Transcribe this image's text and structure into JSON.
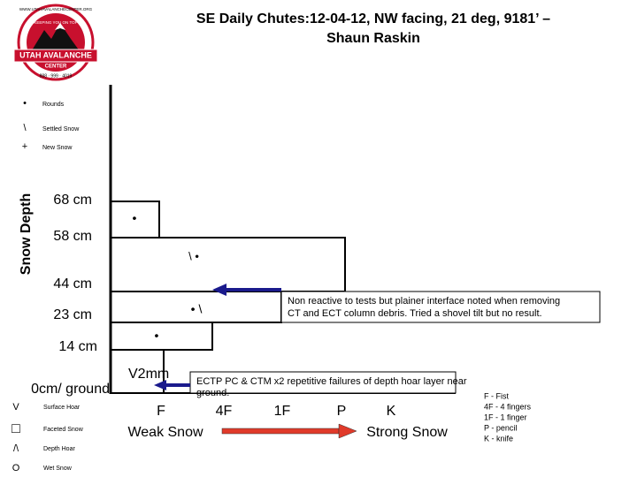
{
  "header": {
    "title_lines": [
      "SE Daily Chutes:12-04-12, NW facing, 21 deg, 9181’ –",
      "Shaun Raskin"
    ]
  },
  "logo": {
    "arc_top": "WWW.UTAHAVALANCHECENTER.ORG",
    "motto": "KEEPING YOU ON TOP",
    "name": "UTAH AVALANCHE",
    "center": "CENTER",
    "phone": "888 · 999 · 4019"
  },
  "grain_legend_top": [
    {
      "symbol": "•",
      "label": "Rounds"
    },
    {
      "symbol": "\\",
      "label": "Settled Snow"
    },
    {
      "symbol": "+",
      "label": "New Snow"
    }
  ],
  "axis_title": "Snow Depth",
  "depth_labels": [
    "68 cm",
    "58 cm",
    "44 cm",
    "23 cm",
    "14 cm",
    "0cm/ ground"
  ],
  "layers": [
    {
      "grains": "•"
    },
    {
      "grains": "\\ •"
    },
    {
      "grains": "• \\"
    },
    {
      "grains": "•"
    },
    {
      "grains": "V2mm"
    }
  ],
  "annotations": [
    {
      "lines": [
        "Non reactive to tests but plainer interface noted when removing",
        "CT and ECT column debris. Tried a shovel tilt but no result."
      ]
    },
    {
      "lines": [
        "ECTP PC & CTM x2 repetitive failures of depth hoar layer near",
        "ground."
      ]
    }
  ],
  "hardness_labels": [
    "F",
    "4F",
    "1F",
    "P",
    "K"
  ],
  "scale_ends": [
    "Weak Snow",
    "Strong Snow"
  ],
  "hardness_key": [
    "F - Fist",
    "4F - 4 fingers",
    "1F - 1 finger",
    "P - pencil",
    "K - knife"
  ],
  "grain_legend_bottom": [
    {
      "symbol": "V",
      "label": "Surface Hoar"
    },
    {
      "symbol": "□",
      "label": "Faceted Snow"
    },
    {
      "symbol": "/\\",
      "label": "Depth Hoar"
    },
    {
      "symbol": "O",
      "label": "Wet Snow"
    }
  ]
}
